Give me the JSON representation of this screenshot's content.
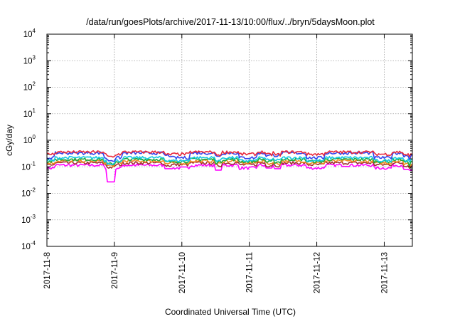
{
  "chart_data": {
    "type": "line",
    "title": "/data/run/goesPlots/archive/2017-11-13/10:00/flux/../bryn/5daysMoon.plot",
    "xlabel": "Coordinated Universal Time (UTC)",
    "ylabel": "cGy/day",
    "yscale": "log",
    "ylim": [
      0.0001,
      10000
    ],
    "y_ticks": [
      {
        "base": "10",
        "exp": "-4",
        "value": 0.0001
      },
      {
        "base": "10",
        "exp": "-3",
        "value": 0.001
      },
      {
        "base": "10",
        "exp": "-2",
        "value": 0.01
      },
      {
        "base": "10",
        "exp": "-1",
        "value": 0.1
      },
      {
        "base": "10",
        "exp": "0",
        "value": 1
      },
      {
        "base": "10",
        "exp": "1",
        "value": 10
      },
      {
        "base": "10",
        "exp": "2",
        "value": 100
      },
      {
        "base": "10",
        "exp": "3",
        "value": 1000
      },
      {
        "base": "10",
        "exp": "4",
        "value": 10000
      }
    ],
    "xlim": [
      "2017-11-08",
      "2017-11-13 10:00"
    ],
    "x_ticks": [
      "2017-11-8",
      "2017-11-9",
      "2017-11-10",
      "2017-11-11",
      "2017-11-12",
      "2017-11-13"
    ],
    "grid": true,
    "legend": "none",
    "series": [
      {
        "color": "#e8283c",
        "base_value": 0.36,
        "dip_value": 0.3
      },
      {
        "color": "#3344ee",
        "base_value": 0.33,
        "dip_value": 0.22
      },
      {
        "color": "#15c8e0",
        "base_value": 0.22,
        "dip_value": 0.17
      },
      {
        "color": "#1faa3c",
        "base_value": 0.19,
        "dip_value": 0.16
      },
      {
        "color": "#f08a1e",
        "base_value": 0.165,
        "dip_value": 0.14
      },
      {
        "color": "#a03030",
        "base_value": 0.14,
        "dip_value": 0.12
      },
      {
        "color": "#ff00ff",
        "base_value": 0.115,
        "dip_value": 0.09
      }
    ],
    "notable_dips": [
      {
        "time": "2017-11-08 22:50",
        "value": 0.027
      },
      {
        "time": "2017-11-09 19:00",
        "value": 0.085
      },
      {
        "time": "2017-11-10 13:00",
        "value": 0.075
      },
      {
        "time": "2017-11-11 07:00",
        "value": 0.09
      },
      {
        "time": "2017-11-11 10:00",
        "value": 0.085
      },
      {
        "time": "2017-11-13 08:00",
        "value": 0.08
      },
      {
        "time": "2017-11-13 10:00",
        "value": 0.075
      }
    ]
  }
}
